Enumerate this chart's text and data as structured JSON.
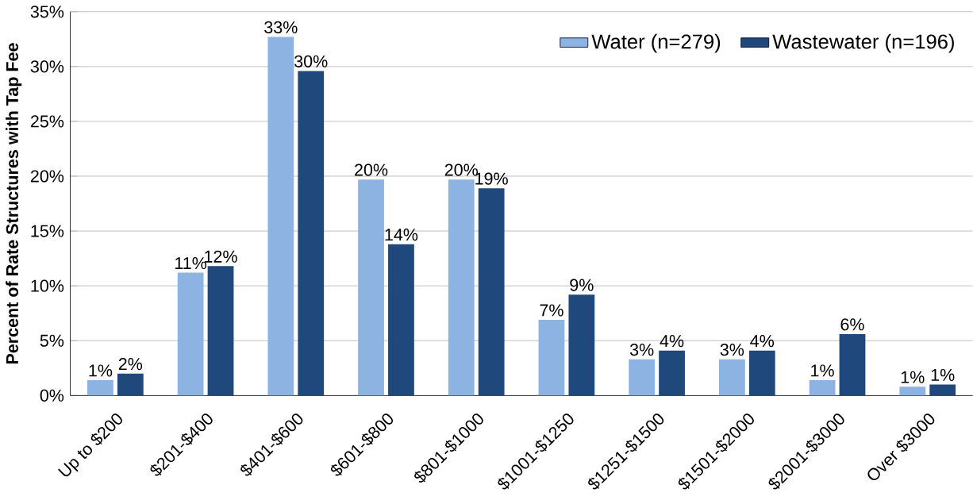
{
  "chart_data": {
    "type": "bar",
    "ylabel": "Percent of Rate Structures with Tap Fee",
    "categories": [
      "Up to $200",
      "$201-$400",
      "$401-$600",
      "$601-$800",
      "$801-$1000",
      "$1001-$1250",
      "$1251-$1500",
      "$1501-$2000",
      "$2001-$3000",
      "Over $3000"
    ],
    "series": [
      {
        "name": "Water (n=279)",
        "color": "#8db3e2",
        "values": [
          1.4,
          11.2,
          32.7,
          19.7,
          19.7,
          6.9,
          3.3,
          3.3,
          1.4,
          0.8
        ],
        "value_labels": [
          "1%",
          "11%",
          "33%",
          "20%",
          "20%",
          "7%",
          "3%",
          "3%",
          "1%",
          "1%"
        ]
      },
      {
        "name": "Wastewater (n=196)",
        "color": "#1f497d",
        "values": [
          2.0,
          11.8,
          29.6,
          13.8,
          18.9,
          9.2,
          4.1,
          4.1,
          5.6,
          1.0
        ],
        "value_labels": [
          "2%",
          "12%",
          "30%",
          "14%",
          "19%",
          "9%",
          "4%",
          "4%",
          "6%",
          "1%"
        ]
      }
    ],
    "ylim": [
      0,
      35
    ],
    "yticks": [
      {
        "value": 0,
        "label": "0%"
      },
      {
        "value": 5,
        "label": "5%"
      },
      {
        "value": 10,
        "label": "10%"
      },
      {
        "value": 15,
        "label": "15%"
      },
      {
        "value": 20,
        "label": "20%"
      },
      {
        "value": 25,
        "label": "25%"
      },
      {
        "value": 30,
        "label": "30%"
      },
      {
        "value": 35,
        "label": "35%"
      }
    ],
    "grid": "y",
    "legend": "top right"
  }
}
